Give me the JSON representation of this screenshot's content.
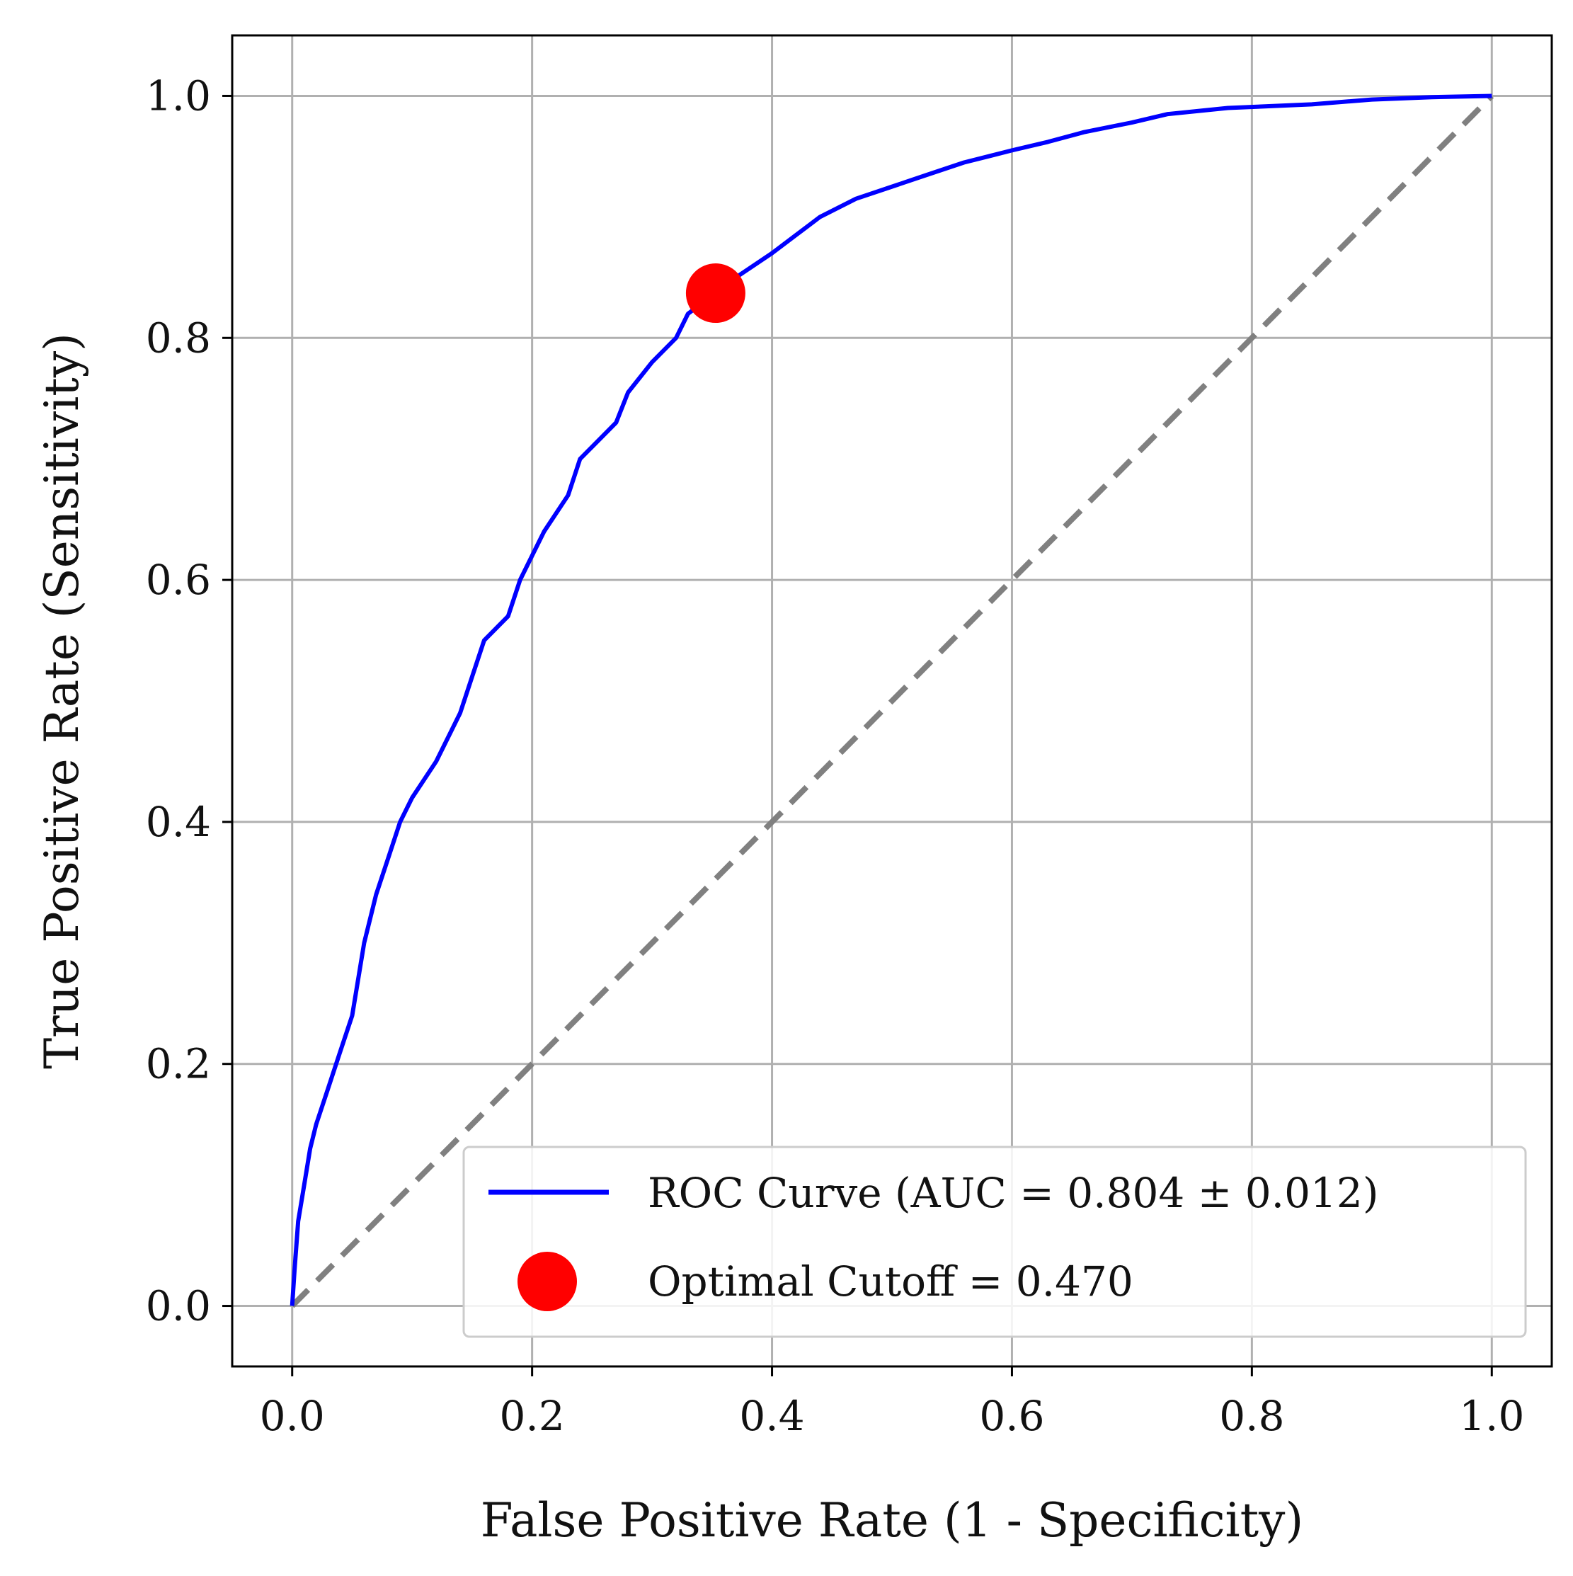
{
  "chart_data": {
    "type": "line",
    "title": "",
    "xlabel": "False Positive Rate (1 - Specificity)",
    "ylabel": "True Positive Rate (Sensitivity)",
    "xlim": [
      -0.05,
      1.05
    ],
    "ylim": [
      -0.05,
      1.05
    ],
    "xticks": [
      0.0,
      0.2,
      0.4,
      0.6,
      0.8,
      1.0
    ],
    "xtick_labels": [
      "0.0",
      "0.2",
      "0.4",
      "0.6",
      "0.8",
      "1.0"
    ],
    "yticks": [
      0.0,
      0.2,
      0.4,
      0.6,
      0.8,
      1.0
    ],
    "ytick_labels": [
      "0.0",
      "0.2",
      "0.4",
      "0.6",
      "0.8",
      "1.0"
    ],
    "grid": true,
    "legend_position": "bottom-right",
    "series": [
      {
        "name": "ROC Curve (AUC = 0.804 ± 0.012)",
        "color": "#0000ff",
        "style": "solid",
        "x": [
          0.0,
          0.002,
          0.005,
          0.01,
          0.015,
          0.02,
          0.03,
          0.04,
          0.05,
          0.06,
          0.07,
          0.08,
          0.09,
          0.1,
          0.12,
          0.14,
          0.15,
          0.16,
          0.18,
          0.19,
          0.2,
          0.21,
          0.23,
          0.24,
          0.25,
          0.27,
          0.28,
          0.3,
          0.32,
          0.33,
          0.35,
          0.37,
          0.4,
          0.42,
          0.44,
          0.47,
          0.5,
          0.53,
          0.56,
          0.6,
          0.63,
          0.66,
          0.7,
          0.73,
          0.78,
          0.85,
          0.9,
          0.95,
          1.0
        ],
        "y": [
          0.0,
          0.03,
          0.07,
          0.1,
          0.13,
          0.15,
          0.18,
          0.21,
          0.24,
          0.3,
          0.34,
          0.37,
          0.4,
          0.42,
          0.45,
          0.49,
          0.52,
          0.55,
          0.57,
          0.6,
          0.62,
          0.64,
          0.67,
          0.7,
          0.71,
          0.73,
          0.755,
          0.78,
          0.8,
          0.82,
          0.835,
          0.85,
          0.87,
          0.885,
          0.9,
          0.915,
          0.925,
          0.935,
          0.945,
          0.955,
          0.962,
          0.97,
          0.978,
          0.985,
          0.99,
          0.993,
          0.997,
          0.999,
          1.0
        ]
      },
      {
        "name": "",
        "color": "#808080",
        "style": "dashed",
        "x": [
          0.0,
          1.0
        ],
        "y": [
          0.0,
          1.0
        ]
      }
    ],
    "markers": [
      {
        "name": "Optimal Cutoff = 0.470",
        "color": "#ff0000",
        "x": 0.353,
        "y": 0.837
      }
    ]
  }
}
